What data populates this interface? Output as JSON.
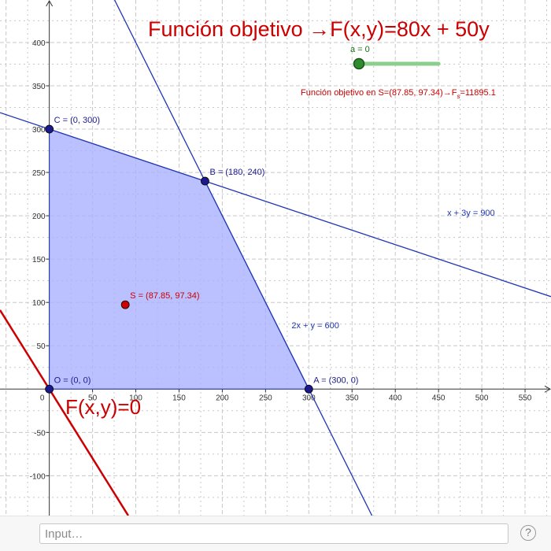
{
  "title": "Función objetivo →F(x,y)=80x + 50y",
  "slider": {
    "label": "a = 0",
    "value": 0
  },
  "optimum_text": {
    "main": "Función objetivo en S=(87.85, 97.34)→F",
    "sub": "s",
    "tail": "=11895.1"
  },
  "zero_line_label": "F(x,y)=0",
  "constraints": [
    {
      "label": "x + 3y = 900",
      "a": 1,
      "b": 3,
      "c": 900,
      "label_at": [
        460,
        200
      ]
    },
    {
      "label": "2x + y = 600",
      "a": 2,
      "b": 1,
      "c": 600,
      "label_at": [
        280,
        70
      ]
    }
  ],
  "objective": {
    "a": 80,
    "b": 50,
    "c": 0
  },
  "feasible_region": [
    [
      0,
      0
    ],
    [
      300,
      0
    ],
    [
      180,
      240
    ],
    [
      0,
      300
    ]
  ],
  "points": [
    {
      "name": "O",
      "label": "O = (0, 0)",
      "x": 0,
      "y": 0,
      "color": "#1a1a8c"
    },
    {
      "name": "A",
      "label": "A = (300, 0)",
      "x": 300,
      "y": 0,
      "color": "#1a1a8c"
    },
    {
      "name": "B",
      "label": "B = (180, 240)",
      "x": 180,
      "y": 240,
      "color": "#1a1a8c"
    },
    {
      "name": "C",
      "label": "C = (0, 300)",
      "x": 0,
      "y": 300,
      "color": "#1a1a8c"
    },
    {
      "name": "S",
      "label": "S = (87.85, 97.34)",
      "x": 87.85,
      "y": 97.34,
      "color": "#cc0000"
    }
  ],
  "x_ticks": [
    0,
    50,
    100,
    150,
    200,
    250,
    300,
    350,
    400,
    450,
    500,
    550
  ],
  "y_ticks": [
    -100,
    -50,
    50,
    100,
    150,
    200,
    250,
    300,
    350,
    400
  ],
  "xlim": [
    -57,
    580
  ],
  "ylim": [
    -146,
    449
  ],
  "colors": {
    "region": "#aab0ff",
    "constraint": "#1f35b5",
    "objective": "#cc0000",
    "title": "#cc0000",
    "slider": "#2e9a2e",
    "grid": "#c8c8c8"
  },
  "input": {
    "placeholder": "Input…"
  },
  "help": {
    "label": "?"
  }
}
